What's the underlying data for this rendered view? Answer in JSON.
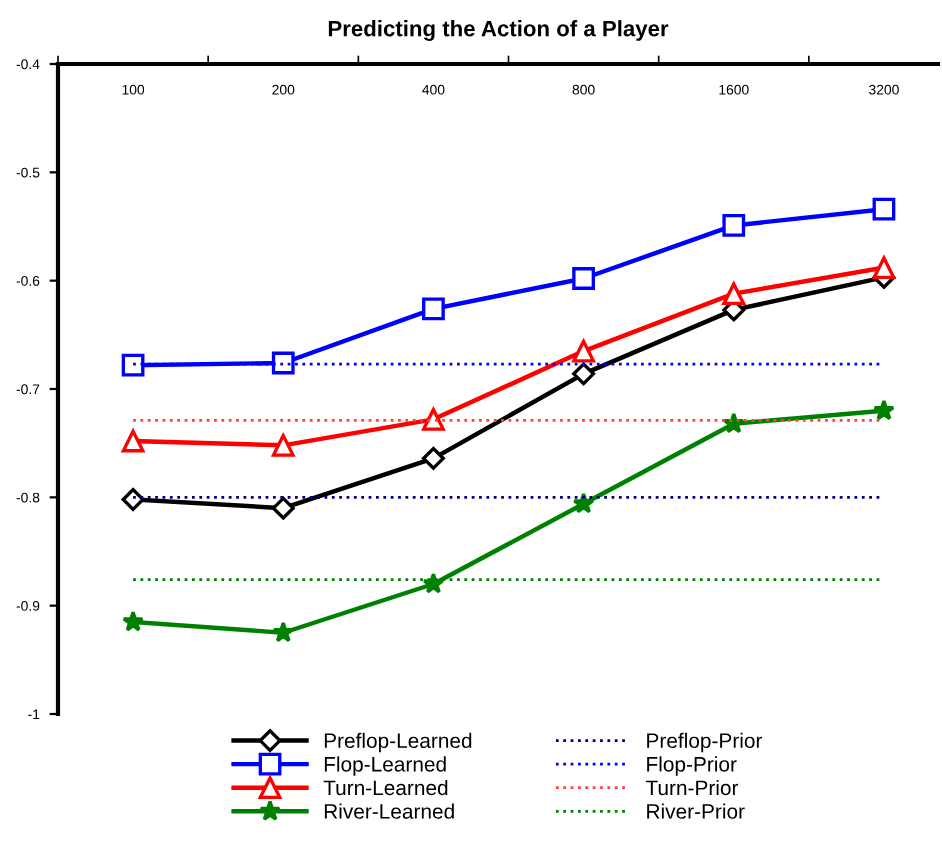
{
  "chart_data": {
    "type": "line",
    "title": "Predicting the Action of a Player",
    "categories": [
      "100",
      "200",
      "400",
      "800",
      "1600",
      "3200"
    ],
    "ylim": [
      -1,
      -0.4
    ],
    "yticks": [
      -1,
      -0.9,
      -0.8,
      -0.7,
      -0.6,
      -0.5,
      -0.4
    ],
    "grid": false,
    "legend": "bottom",
    "series": [
      {
        "name": "Preflop-Learned",
        "color": "#000000",
        "marker": "diamond",
        "line_style": "solid",
        "values": [
          -0.802,
          -0.81,
          -0.764,
          -0.686,
          -0.627,
          -0.597
        ]
      },
      {
        "name": "Flop-Learned",
        "color": "#0000ff",
        "marker": "square",
        "line_style": "solid",
        "values": [
          -0.678,
          -0.676,
          -0.626,
          -0.598,
          -0.549,
          -0.534
        ]
      },
      {
        "name": "Turn-Learned",
        "color": "#ff0000",
        "marker": "triangle",
        "line_style": "solid",
        "values": [
          -0.748,
          -0.752,
          -0.728,
          -0.665,
          -0.612,
          -0.588
        ]
      },
      {
        "name": "River-Learned",
        "color": "#008000",
        "marker": "star",
        "line_style": "solid",
        "values": [
          -0.915,
          -0.925,
          -0.88,
          -0.806,
          -0.732,
          -0.72
        ]
      },
      {
        "name": "Preflop-Prior",
        "color": "#000080",
        "marker": "none",
        "line_style": "dotted",
        "values": [
          -0.8,
          -0.8,
          -0.8,
          -0.8,
          -0.8,
          -0.8
        ]
      },
      {
        "name": "Flop-Prior",
        "color": "#0000ff",
        "marker": "none",
        "line_style": "dotted",
        "values": [
          -0.677,
          -0.677,
          -0.677,
          -0.677,
          -0.677,
          -0.677
        ]
      },
      {
        "name": "Turn-Prior",
        "color": "#ff4040",
        "marker": "none",
        "line_style": "dotted",
        "values": [
          -0.729,
          -0.729,
          -0.729,
          -0.729,
          -0.729,
          -0.729
        ]
      },
      {
        "name": "River-Prior",
        "color": "#008000",
        "marker": "none",
        "line_style": "dotted",
        "values": [
          -0.876,
          -0.876,
          -0.876,
          -0.876,
          -0.876,
          -0.876
        ]
      }
    ]
  }
}
